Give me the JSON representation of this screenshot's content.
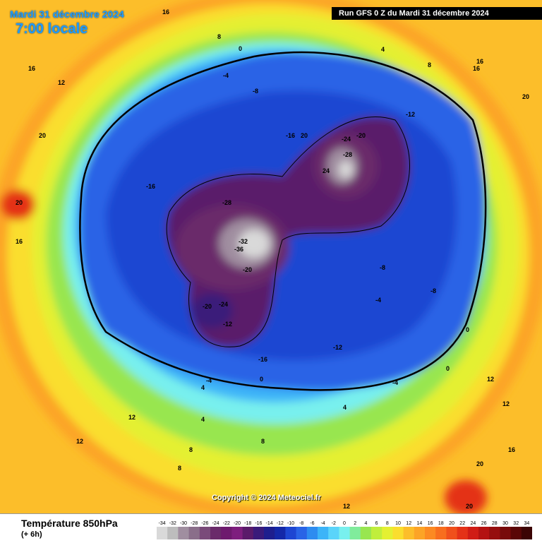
{
  "header": {
    "date": "Mardi 31 décembre 2024",
    "time": "7:00 locale",
    "run": "Run GFS 0 Z du Mardi 31 décembre 2024"
  },
  "footer": {
    "copyright": "Copyright © 2024 Meteociel.fr",
    "title": "Température 850hPa",
    "subtitle": "(+ 6h)"
  },
  "legend": {
    "ticks": [
      "-34",
      "-32",
      "-30",
      "-28",
      "-26",
      "-24",
      "-22",
      "-20",
      "-18",
      "-16",
      "-14",
      "-12",
      "-10",
      "-8",
      "-6",
      "-4",
      "-2",
      "0",
      "2",
      "4",
      "6",
      "8",
      "10",
      "12",
      "14",
      "16",
      "18",
      "20",
      "22",
      "24",
      "26",
      "28",
      "30",
      "32",
      "34"
    ],
    "colors": [
      "#d9d9d9",
      "#bdbdbd",
      "#a08ea0",
      "#8a6e8a",
      "#7a4a7a",
      "#6a2a6a",
      "#6e1a6e",
      "#7e1e7e",
      "#5a1a6a",
      "#3a1a7a",
      "#1e1e8e",
      "#1428a8",
      "#1e46d2",
      "#2a64e6",
      "#2e8cf0",
      "#3cb4f8",
      "#5ad4fa",
      "#78f0ee",
      "#80ec9c",
      "#98e650",
      "#c0ee3c",
      "#e4f032",
      "#fade2e",
      "#fcbe2a",
      "#fca426",
      "#fc8a22",
      "#f86e1e",
      "#f0501c",
      "#e43218",
      "#d01c16",
      "#b41212",
      "#960e0e",
      "#780a0a",
      "#5a0606",
      "#3c0404"
    ]
  },
  "map_labels": [
    "16",
    "8",
    "12",
    "16",
    "20",
    "0",
    "-4",
    "-8",
    "-12",
    "-16",
    "-20",
    "-24",
    "-28",
    "-32",
    "-36",
    "24",
    "20",
    "4",
    "12",
    "8",
    "-4",
    "0",
    "16",
    "12",
    "20",
    "8",
    "4",
    "12",
    "16",
    "20",
    "-24",
    "-20",
    "-12",
    "-16",
    "-16",
    "-8",
    "-4",
    "0",
    "4",
    "8",
    "12",
    "16",
    "20",
    "-28",
    "-20",
    "-12",
    "-8",
    "-4",
    "0",
    "4",
    "8",
    "12",
    "16",
    "20"
  ]
}
